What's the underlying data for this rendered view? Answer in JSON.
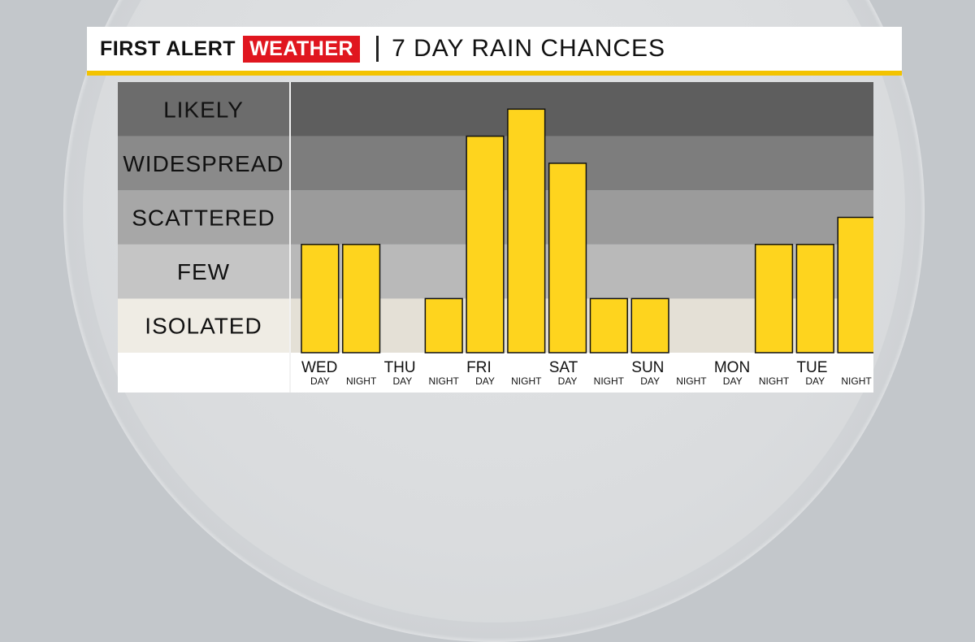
{
  "header": {
    "brand_first": "FIRST ALERT",
    "brand_weather": "WEATHER",
    "title": "7 DAY RAIN CHANCES"
  },
  "colors": {
    "bar": "#fed41e",
    "brand_red": "#e0161f",
    "accent_yellow": "#f3c300"
  },
  "chart_data": {
    "type": "bar",
    "title": "7 DAY RAIN CHANCES",
    "levels": [
      "ISOLATED",
      "FEW",
      "SCATTERED",
      "WIDESPREAD",
      "LIKELY"
    ],
    "days": [
      "WED",
      "THU",
      "FRI",
      "SAT",
      "SUN",
      "MON",
      "TUE"
    ],
    "periods": [
      "DAY",
      "NIGHT"
    ],
    "categories": [
      "WED DAY",
      "WED NIGHT",
      "THU DAY",
      "THU NIGHT",
      "FRI DAY",
      "FRI NIGHT",
      "SAT DAY",
      "SAT NIGHT",
      "SUN DAY",
      "SUN NIGHT",
      "MON DAY",
      "MON NIGHT",
      "TUE DAY",
      "TUE NIGHT"
    ],
    "values": [
      2,
      2,
      0,
      1,
      4,
      4.5,
      3.5,
      1,
      1,
      0,
      0,
      2,
      2,
      2.5
    ],
    "ylim": [
      0,
      5
    ],
    "grid": false,
    "legend": "none"
  }
}
